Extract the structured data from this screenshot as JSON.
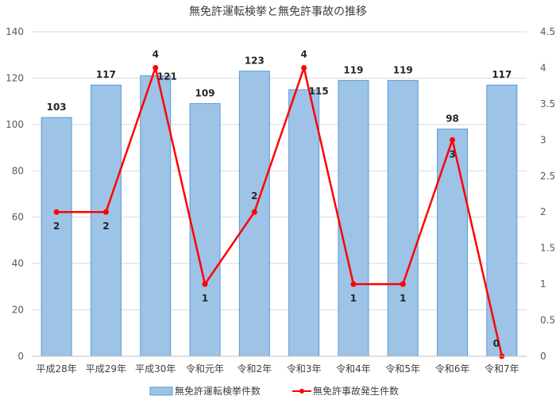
{
  "chart_data": {
    "type": "bar",
    "title": "無免許運転検挙と無免許事故の推移",
    "categories": [
      "平成28年",
      "平成29年",
      "平成30年",
      "令和元年",
      "令和2年",
      "令和3年",
      "令和4年",
      "令和5年",
      "令和6年",
      "令和7年"
    ],
    "series": [
      {
        "name": "無免許運転検挙件数",
        "type": "bar",
        "axis": "left",
        "values": [
          103,
          117,
          121,
          109,
          123,
          115,
          119,
          119,
          98,
          117
        ]
      },
      {
        "name": "無免許事故発生件数",
        "type": "line",
        "axis": "right",
        "values": [
          2,
          2,
          4,
          1,
          2,
          4,
          1,
          1,
          3,
          0
        ]
      }
    ],
    "y_left": {
      "min": 0,
      "max": 140,
      "ticks": [
        "0",
        "20",
        "40",
        "60",
        "80",
        "100",
        "120",
        "140"
      ]
    },
    "y_right": {
      "min": 0,
      "max": 4.5,
      "ticks": [
        "0",
        "0.5",
        "1",
        "1.5",
        "2",
        "2.5",
        "3",
        "3.5",
        "4",
        "4.5"
      ]
    },
    "grid": true,
    "legend_position": "bottom",
    "colors": {
      "bar_fill": "#9DC3E6",
      "bar_stroke": "#5B9BD5",
      "line": "#FF0000",
      "grid": "#D9D9D9"
    }
  }
}
